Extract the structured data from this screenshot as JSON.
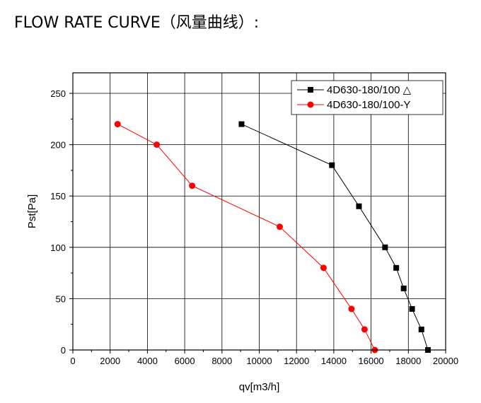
{
  "page": {
    "title": "FLOW RATE CURVE（风量曲线）:"
  },
  "chart_data": {
    "type": "line",
    "xlabel": "qv[m3/h]",
    "ylabel": "Pst[Pa]",
    "xlim": [
      0,
      20000
    ],
    "ylim": [
      0,
      270
    ],
    "x_ticks": [
      0,
      2000,
      4000,
      6000,
      8000,
      10000,
      12000,
      14000,
      16000,
      18000,
      20000
    ],
    "y_ticks": [
      0,
      50,
      100,
      150,
      200,
      250
    ],
    "grid": true,
    "legend_position": "top-right",
    "series": [
      {
        "name": "4D630-180/100 △",
        "color": "#000000",
        "marker": "square",
        "x": [
          9050,
          13900,
          15350,
          16750,
          17350,
          17750,
          18200,
          18700,
          19050
        ],
        "y": [
          220,
          180,
          140,
          100,
          80,
          60,
          40,
          20,
          0
        ]
      },
      {
        "name": "4D630-180/100-Y",
        "color": "#ff0000",
        "marker": "circle",
        "x": [
          2400,
          4500,
          6400,
          11100,
          13450,
          14950,
          15650,
          16200
        ],
        "y": [
          220,
          200,
          160,
          120,
          80,
          40,
          20,
          0
        ]
      }
    ]
  }
}
